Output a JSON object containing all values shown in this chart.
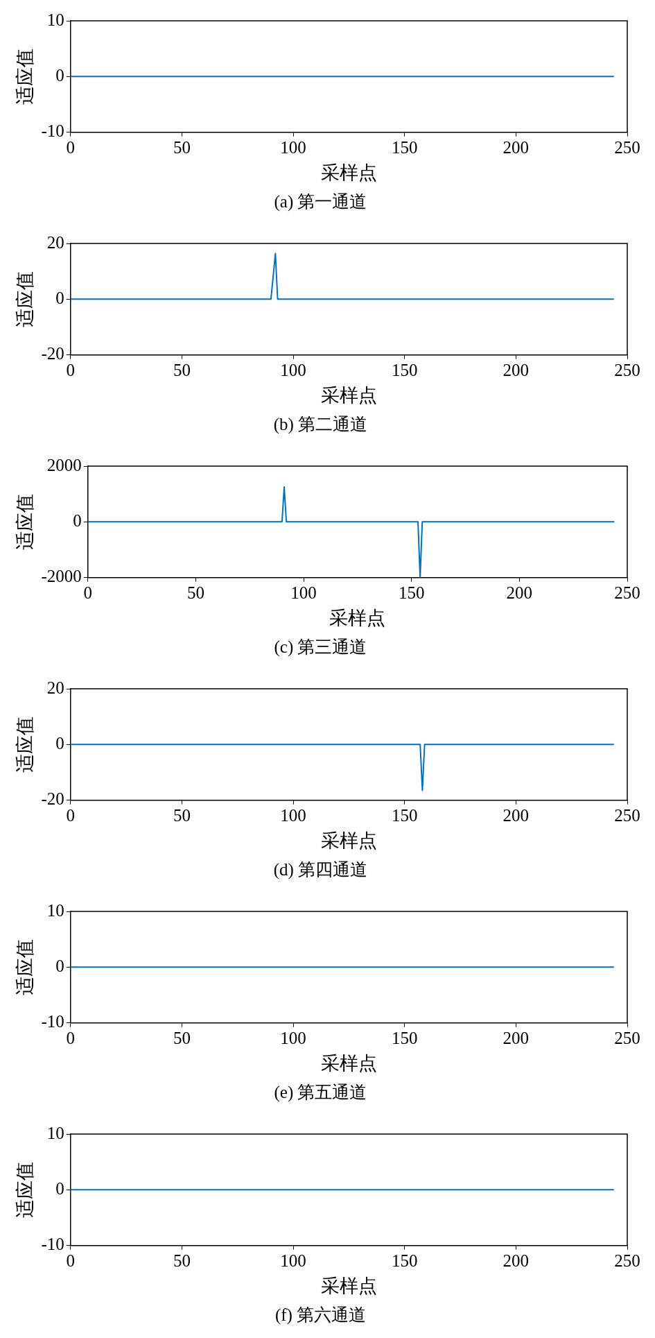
{
  "chart_data": [
    {
      "type": "line",
      "title": "(a) 第一通道",
      "xlabel": "采样点",
      "ylabel": "适应值",
      "series": [
        {
          "color": "#0072bd",
          "x": [
            0,
            244
          ],
          "values": [
            0,
            0
          ]
        }
      ],
      "xlim": [
        0,
        250
      ],
      "xticks": [
        0,
        50,
        100,
        150,
        200,
        250
      ],
      "ylim": [
        -10,
        10
      ],
      "yticks": [
        -10,
        0,
        10
      ],
      "grid": false,
      "legend": false,
      "marker": "none",
      "line_style": "solid"
    },
    {
      "type": "line",
      "title": "(b) 第二通道",
      "xlabel": "采样点",
      "ylabel": "适应值",
      "series": [
        {
          "color": "#0072bd",
          "x": [
            0,
            90,
            92,
            93,
            244
          ],
          "values": [
            0,
            0,
            16.4,
            0,
            0
          ]
        }
      ],
      "xlim": [
        0,
        250
      ],
      "xticks": [
        0,
        50,
        100,
        150,
        200,
        250
      ],
      "ylim": [
        -20,
        20
      ],
      "yticks": [
        -20,
        0,
        20
      ],
      "grid": false,
      "legend": false,
      "marker": "none",
      "line_style": "solid"
    },
    {
      "type": "line",
      "title": "(c) 第三通道",
      "xlabel": "采样点",
      "ylabel": "适应值",
      "series": [
        {
          "color": "#0072bd",
          "x": [
            0,
            90,
            91,
            92,
            153,
            154,
            155,
            244
          ],
          "values": [
            0,
            0,
            1250,
            0,
            0,
            -2000,
            0,
            0
          ]
        }
      ],
      "xlim": [
        0,
        250
      ],
      "xticks": [
        0,
        50,
        100,
        150,
        200,
        250
      ],
      "ylim": [
        -2000,
        2000
      ],
      "yticks": [
        -2000,
        0,
        2000
      ],
      "grid": false,
      "legend": false,
      "marker": "none",
      "line_style": "solid"
    },
    {
      "type": "line",
      "title": "(d) 第四通道",
      "xlabel": "采样点",
      "ylabel": "适应值",
      "series": [
        {
          "color": "#0072bd",
          "x": [
            0,
            157,
            158,
            159,
            244
          ],
          "values": [
            0,
            0,
            -16.5,
            0,
            0
          ]
        }
      ],
      "xlim": [
        0,
        250
      ],
      "xticks": [
        0,
        50,
        100,
        150,
        200,
        250
      ],
      "ylim": [
        -20,
        20
      ],
      "yticks": [
        -20,
        0,
        20
      ],
      "grid": false,
      "legend": false,
      "marker": "none",
      "line_style": "solid"
    },
    {
      "type": "line",
      "title": "(e) 第五通道",
      "xlabel": "采样点",
      "ylabel": "适应值",
      "series": [
        {
          "color": "#0072bd",
          "x": [
            0,
            244
          ],
          "values": [
            0,
            0
          ]
        }
      ],
      "xlim": [
        0,
        250
      ],
      "xticks": [
        0,
        50,
        100,
        150,
        200,
        250
      ],
      "ylim": [
        -10,
        10
      ],
      "yticks": [
        -10,
        0,
        10
      ],
      "grid": false,
      "legend": false,
      "marker": "none",
      "line_style": "solid"
    },
    {
      "type": "line",
      "title": "(f) 第六通道",
      "xlabel": "采样点",
      "ylabel": "适应值",
      "series": [
        {
          "color": "#0072bd",
          "x": [
            0,
            244
          ],
          "values": [
            0,
            0
          ]
        }
      ],
      "xlim": [
        0,
        250
      ],
      "xticks": [
        0,
        50,
        100,
        150,
        200,
        250
      ],
      "ylim": [
        -10,
        10
      ],
      "yticks": [
        -10,
        0,
        10
      ],
      "grid": false,
      "legend": false,
      "marker": "none",
      "line_style": "solid"
    }
  ]
}
